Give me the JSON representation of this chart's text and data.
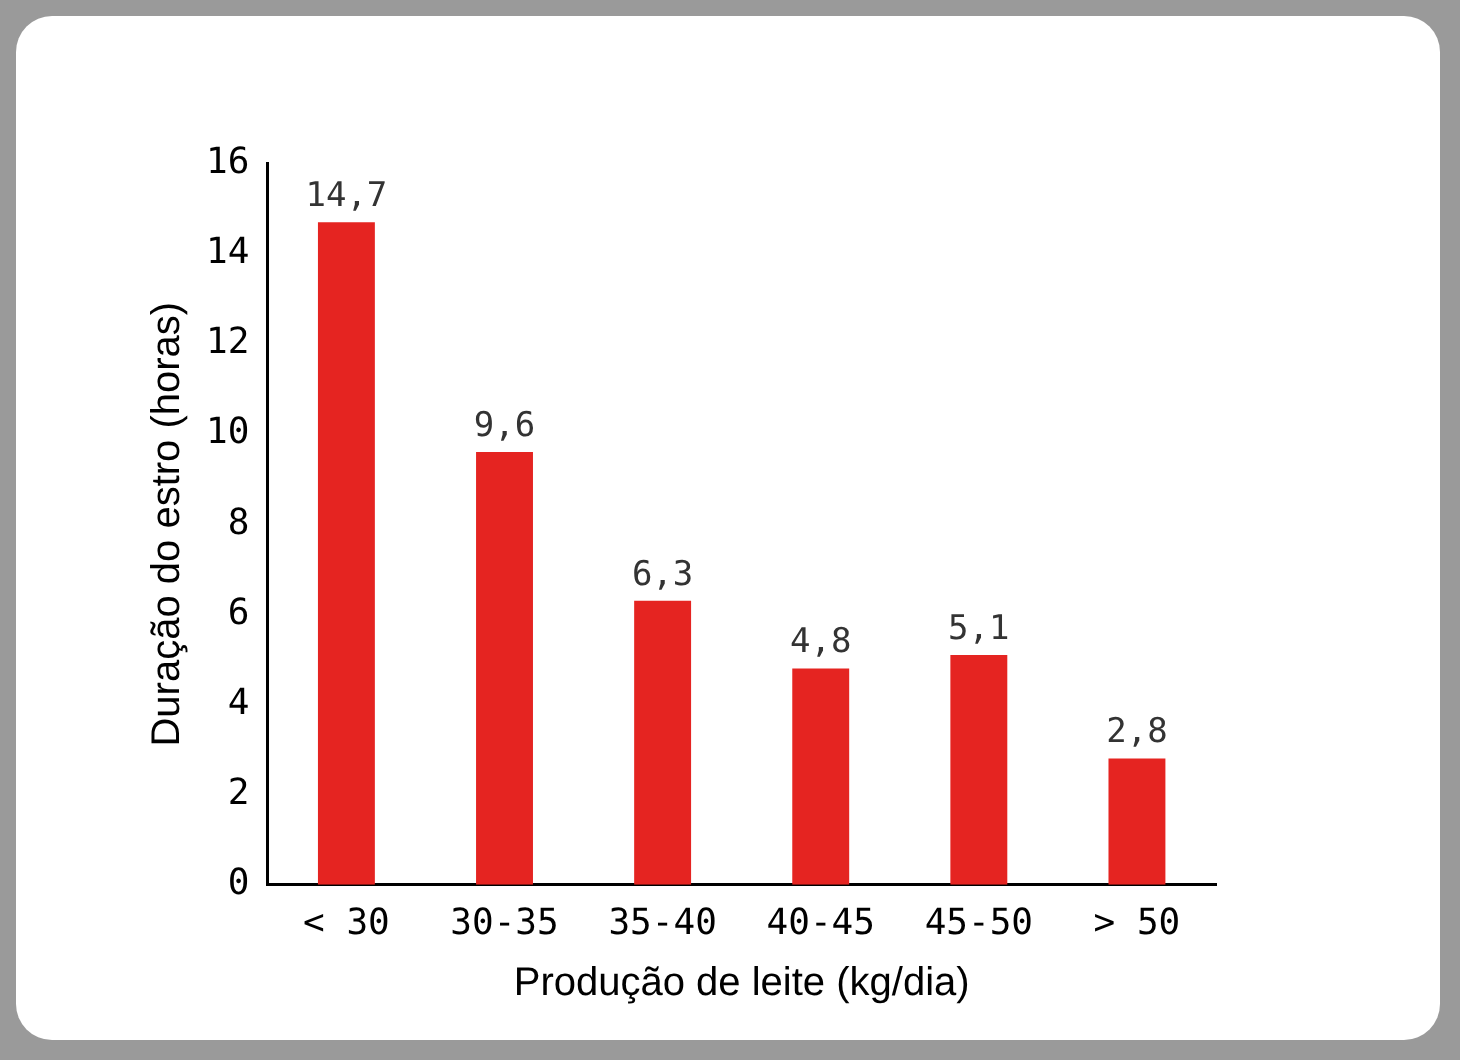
{
  "chart_data": {
    "type": "bar",
    "xlabel": "Produção de leite (kg/dia)",
    "ylabel": "Duração do estro (horas)",
    "categories": [
      "< 30",
      "30-35",
      "35-40",
      "40-45",
      "45-50",
      "> 50"
    ],
    "values": [
      14.7,
      9.6,
      6.3,
      4.8,
      5.1,
      2.8
    ],
    "value_labels": [
      "14,7",
      "9,6",
      "6,3",
      "4,8",
      "5,1",
      "2,8"
    ],
    "color": "#e52421",
    "ylim": [
      0,
      16
    ],
    "yticks": [
      0,
      2,
      4,
      6,
      8,
      10,
      12,
      14,
      16
    ],
    "grid": false,
    "legend": false
  }
}
